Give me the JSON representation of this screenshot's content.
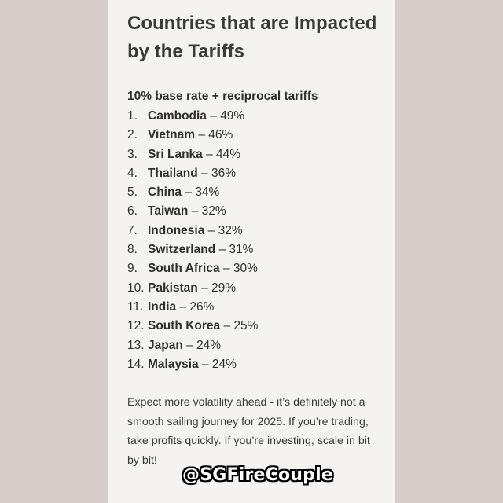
{
  "card": {
    "title": "Countries that are Impacted by the Tariffs",
    "subtitle": "10% base rate + reciprocal tariffs",
    "tariffs": [
      {
        "number": "1.",
        "country": "Cambodia",
        "rate": "49%"
      },
      {
        "number": "2.",
        "country": "Vietnam",
        "rate": "46%"
      },
      {
        "number": "3.",
        "country": "Sri Lanka",
        "rate": "44%"
      },
      {
        "number": "4.",
        "country": "Thailand",
        "rate": "36%"
      },
      {
        "number": "5.",
        "country": "China",
        "rate": "34%"
      },
      {
        "number": "6.",
        "country": "Taiwan",
        "rate": "32%"
      },
      {
        "number": "7.",
        "country": "Indonesia",
        "rate": "32%"
      },
      {
        "number": "8.",
        "country": "Switzerland",
        "rate": "31%"
      },
      {
        "number": "9.",
        "country": "South Africa",
        "rate": "30%"
      },
      {
        "number": "10.",
        "country": "Pakistan",
        "rate": "29%"
      },
      {
        "number": "11.",
        "country": "India",
        "rate": "26%"
      },
      {
        "number": "12.",
        "country": "South Korea",
        "rate": "25%"
      },
      {
        "number": "13.",
        "country": "Japan",
        "rate": "24%"
      },
      {
        "number": "14.",
        "country": "Malaysia",
        "rate": "24%"
      }
    ],
    "separator": "–",
    "footer": "Expect more volatility ahead - it’s definitely not a smooth sailing journey for 2025. If you’re trading, take profits quickly. If you’re investing, scale in bit by bit!"
  },
  "watermark": "@SGFireCouple",
  "colors": {
    "background": "#d8cfcc",
    "card": "#f5f3f1",
    "text": "#2f2f2f"
  }
}
